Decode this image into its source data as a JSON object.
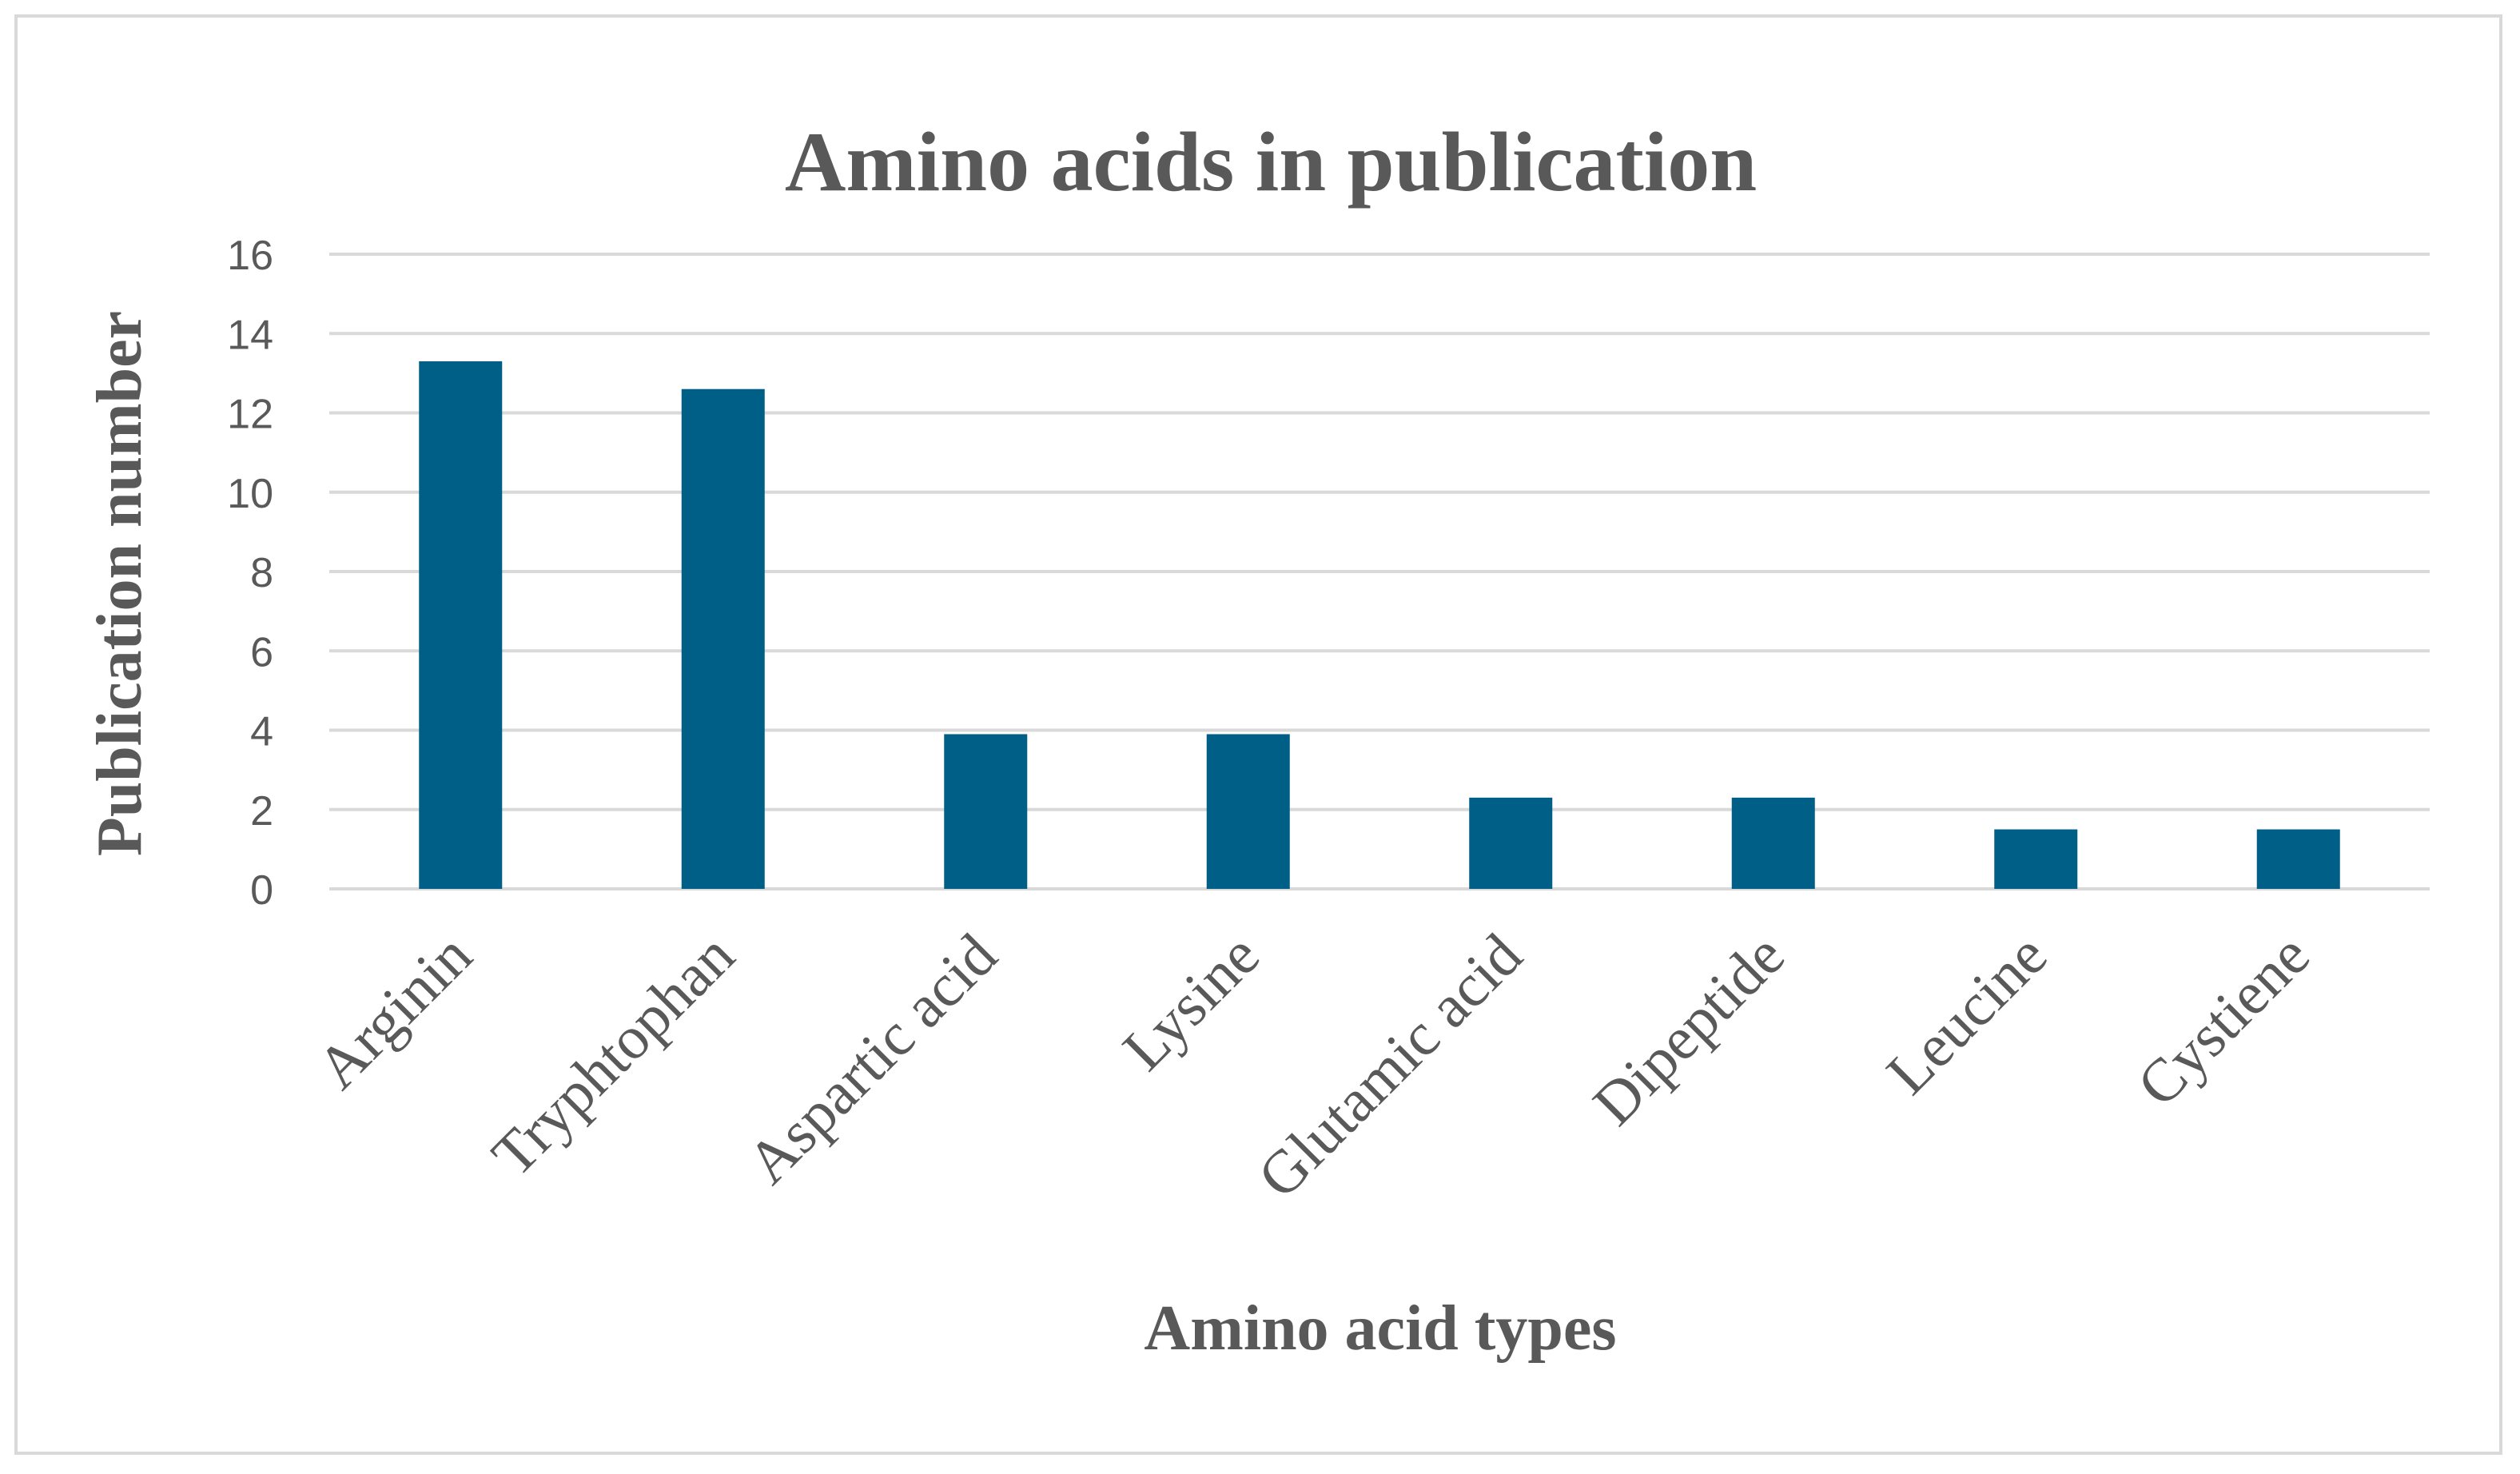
{
  "chart_data": {
    "type": "bar",
    "title": "Amino acids in publication",
    "xlabel": "Amino acid types",
    "ylabel": "Publication number",
    "categories": [
      "Arginin",
      "Tryphtophan",
      "Aspartic acid",
      "Lysine",
      "Glutamic acid",
      "Dipeptide",
      "Leucine",
      "Cystiene"
    ],
    "values": [
      13.3,
      12.6,
      3.9,
      3.9,
      2.3,
      2.3,
      1.5,
      1.5
    ],
    "ylim": [
      0,
      16
    ],
    "yticks": [
      "0",
      "2",
      "4",
      "6",
      "8",
      "10",
      "12",
      "14",
      "16"
    ],
    "grid": true,
    "legend": "none",
    "bar_color": "#005f86"
  }
}
